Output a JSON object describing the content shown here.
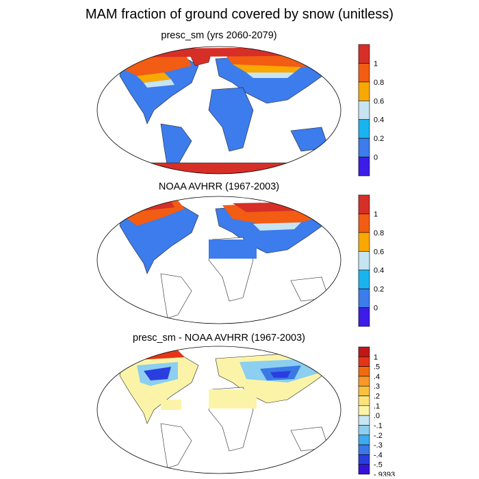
{
  "main_title": "MAM fraction of ground covered by snow (unitless)",
  "panels": [
    {
      "title": "presc_sm (yrs 2060-2079)",
      "colorbar": {
        "labels": [
          "1",
          "0.8",
          "0.6",
          "0.4",
          "0.2",
          "0"
        ],
        "colors": [
          "#d62f27",
          "#f25c13",
          "#f8a800",
          "#c6e4f2",
          "#19b4f0",
          "#3c7cec",
          "#3d1ce8"
        ]
      }
    },
    {
      "title": "NOAA AVHRR (1967-2003)",
      "colorbar": {
        "labels": [
          "1",
          "0.8",
          "0.6",
          "0.4",
          "0.2",
          "0"
        ],
        "colors": [
          "#d62f27",
          "#f25c13",
          "#f8a800",
          "#c6e4f2",
          "#19b4f0",
          "#3c7cec",
          "#3d1ce8"
        ]
      }
    },
    {
      "title": "presc_sm - NOAA AVHRR (1967-2003)",
      "colorbar": {
        "labels": [
          "1",
          ".5",
          ".4",
          ".3",
          ".2",
          ".1",
          ".0",
          "-.1",
          "-.2",
          "-.3",
          "-.4",
          "-.5",
          "-.9393"
        ],
        "colors": [
          "#c01818",
          "#e53516",
          "#f26a10",
          "#f89828",
          "#f9c040",
          "#fbe37a",
          "#fbf4a8",
          "#c7e6f2",
          "#8ccff0",
          "#3eaaf0",
          "#3a78e6",
          "#2a3ee0",
          "#3612d8"
        ]
      }
    }
  ]
}
